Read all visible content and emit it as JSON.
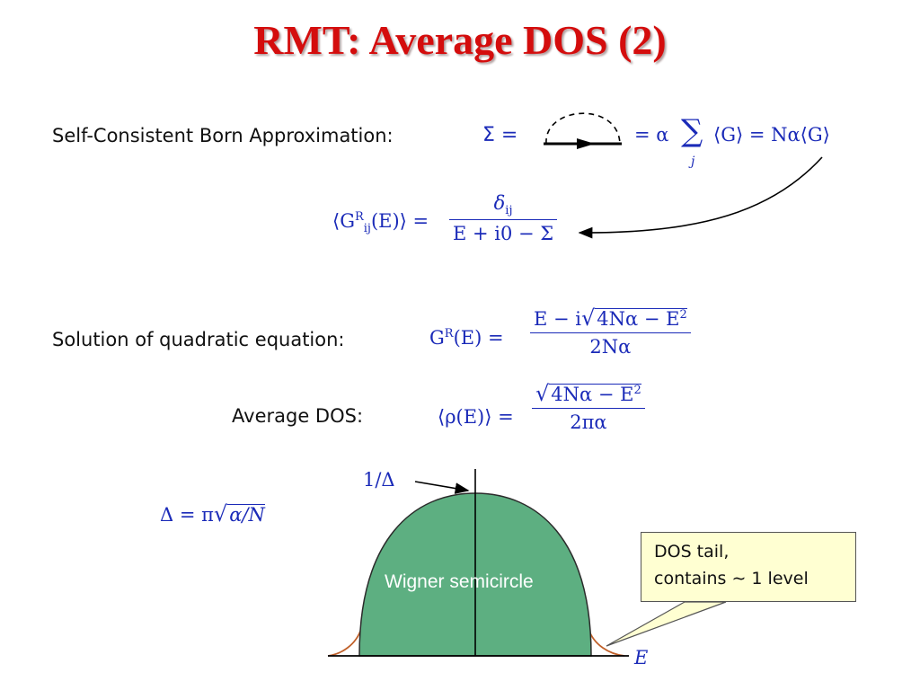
{
  "slide": {
    "title": "RMT: Average DOS (2)"
  },
  "scba": {
    "label": "Self-Consistent Born Approximation:",
    "sigma": "Σ",
    "eq1": "=",
    "eq2": "= α",
    "sum_symbol": "∑",
    "sum_index": "j",
    "rhs": "⟨G⟩ = Nα⟨G⟩"
  },
  "green_avg": {
    "lhs_open": "⟨G",
    "sup": "R",
    "sub": "ij",
    "lhs_close": "(E)⟩ =",
    "numerator": "δ",
    "numerator_sub": "ij",
    "denominator": "E + i0 − Σ"
  },
  "quadratic": {
    "label": "Solution of quadratic equation:",
    "lhs": "G",
    "lhs_sup": "R",
    "lhs_tail": "(E) =",
    "num_pre": "E − i",
    "num_root": "4Nα − E",
    "num_root_sup": "2",
    "denominator": "2Nα"
  },
  "avg_dos": {
    "label": "Average DOS:",
    "lhs": "⟨ρ(E)⟩ =",
    "num_root": "4Nα − E",
    "num_root_sup": "2",
    "denominator": "2πα"
  },
  "delta_def": {
    "lhs": "Δ = π",
    "root": "α/N"
  },
  "plot": {
    "peak_label": "1/Δ",
    "region_label": "Wigner semicircle",
    "axis_label": "E",
    "fill_color": "#5daf81",
    "tail_color": "#c0602a",
    "ink_color": "#1a2ab8"
  },
  "callout": {
    "line1": "DOS tail,",
    "line2": "contains ∼ 1 level",
    "fill_color": "#ffffd2"
  }
}
